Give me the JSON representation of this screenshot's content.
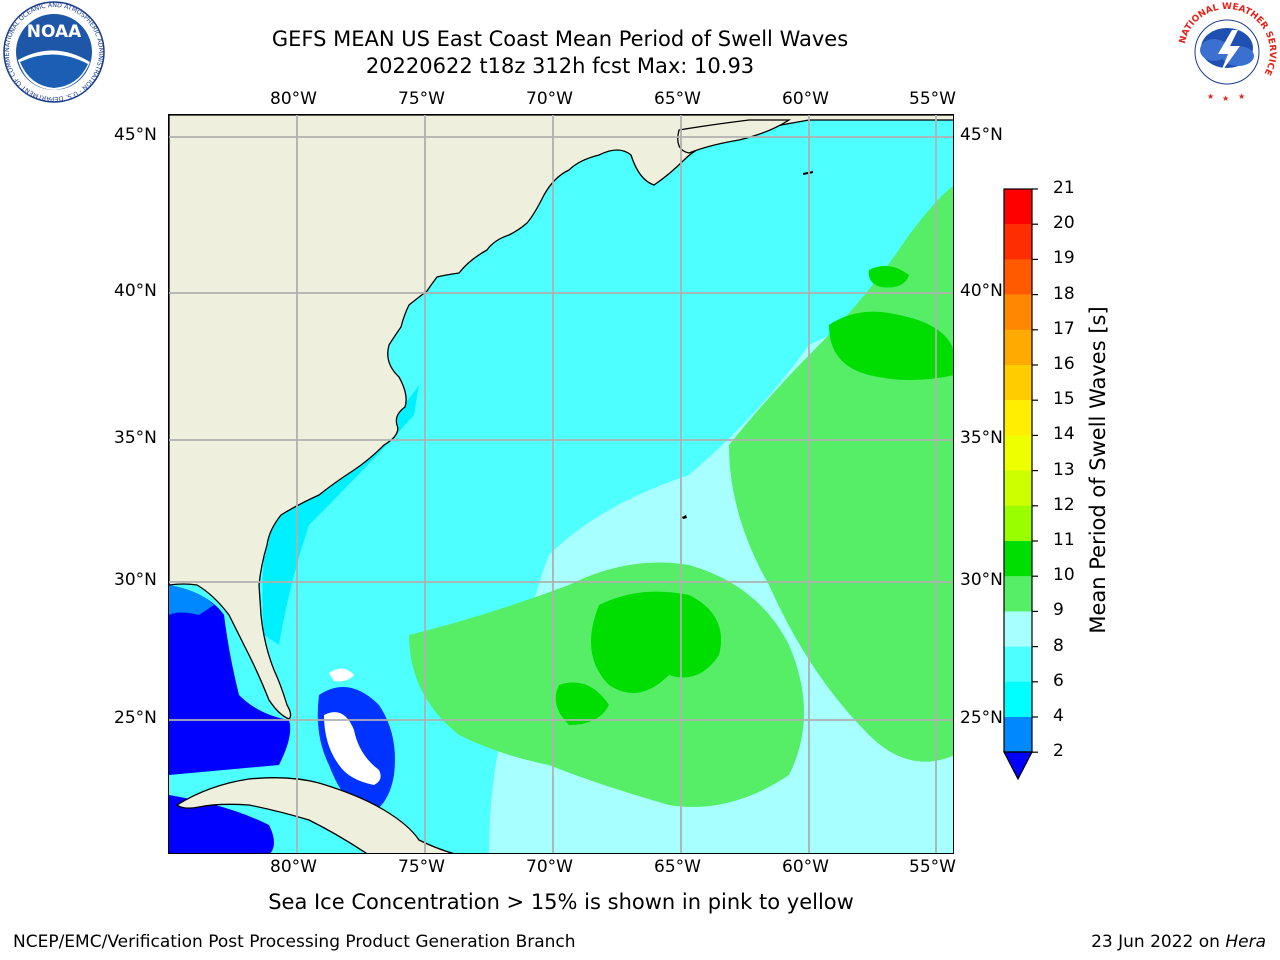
{
  "title": {
    "line1": "GEFS MEAN US East Coast Mean Period of Swell Waves",
    "line2": "20220622 t18z 312h fcst   Max: 10.93"
  },
  "map": {
    "lon_ticks": [
      "80°W",
      "75°W",
      "70°W",
      "65°W",
      "60°W",
      "55°W"
    ],
    "lat_ticks": [
      "45°N",
      "40°N",
      "35°N",
      "30°N",
      "25°N"
    ],
    "land_color": "#efefde",
    "gridline_color": "#b0b0b0"
  },
  "colorbar": {
    "label": "Mean Period of Swell Waves [s]",
    "ticks": [
      "21",
      "20",
      "19",
      "18",
      "17",
      "16",
      "15",
      "14",
      "13",
      "12",
      "11",
      "10",
      "9",
      "8",
      "6",
      "4",
      "2"
    ],
    "colors": [
      "#ff0000",
      "#ff2400",
      "#ff4c00",
      "#ff7700",
      "#ff9900",
      "#ffbb00",
      "#ffe000",
      "#ffff00",
      "#e6ff00",
      "#c4ff00",
      "#99ff00",
      "#55ee00",
      "#00dd00",
      "#55ee66",
      "#aaffff",
      "#55ffff",
      "#00ffff",
      "#0088ff",
      "#0000ff"
    ]
  },
  "footnote": "Sea Ice Concentration > 15% is shown in pink to yellow",
  "credit_left": "NCEP/EMC/Verification Post Processing Product Generation Branch",
  "credit_right": {
    "date": "23 Jun 2022 on ",
    "host": "Hera"
  },
  "logos": {
    "noaa": "NOAA",
    "noaa_ring": "NATIONAL OCEANIC AND ATMOSPHERIC ADMINISTRATION · U.S. DEPARTMENT OF COMMERCE",
    "nws_ring": "NATIONAL WEATHER SERVICE"
  }
}
